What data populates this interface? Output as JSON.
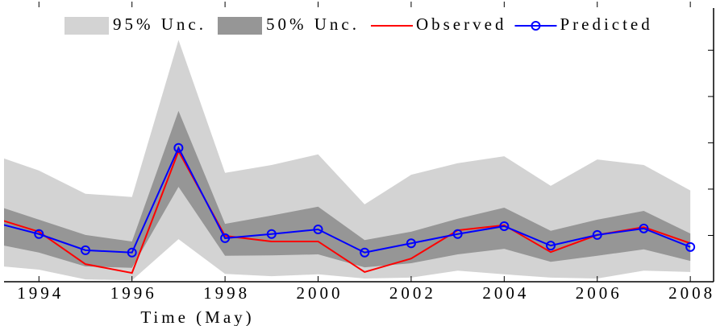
{
  "chart_data": {
    "type": "line",
    "x": [
      1993,
      1994,
      1995,
      1996,
      1997,
      1998,
      1999,
      2000,
      2001,
      2002,
      2003,
      2004,
      2005,
      2006,
      2007,
      2008
    ],
    "xlabel": "Time (May)",
    "xlim": [
      1993.25,
      2008.5
    ],
    "xticks": [
      1994,
      1996,
      1998,
      2000,
      2002,
      2004,
      2006,
      2008
    ],
    "ylim": [
      0,
      5.91
    ],
    "yticks": [
      1,
      2,
      3,
      4,
      5
    ],
    "bands": [
      {
        "name": "95% Unc.",
        "color": "#d3d3d3",
        "upper": [
          2.75,
          2.4,
          1.9,
          1.83,
          5.22,
          2.35,
          2.52,
          2.75,
          1.67,
          2.31,
          2.56,
          2.71,
          2.07,
          2.64,
          2.52,
          1.97
        ],
        "lower": [
          0.35,
          0.26,
          0.05,
          0.03,
          0.92,
          0.17,
          0.12,
          0.16,
          0.07,
          0.09,
          0.24,
          0.16,
          0.09,
          0.07,
          0.24,
          0.21
        ]
      },
      {
        "name": "50% Unc.",
        "color": "#969696",
        "upper": [
          1.67,
          1.34,
          1.01,
          0.87,
          3.69,
          1.25,
          1.43,
          1.62,
          0.9,
          1.08,
          1.36,
          1.6,
          1.1,
          1.34,
          1.53,
          1.04
        ],
        "lower": [
          0.83,
          0.63,
          0.33,
          0.3,
          2.05,
          0.56,
          0.57,
          0.59,
          0.31,
          0.4,
          0.59,
          0.71,
          0.43,
          0.56,
          0.7,
          0.45
        ]
      }
    ],
    "series": [
      {
        "name": "Observed",
        "color": "#ff0000",
        "marker": false,
        "values": [
          1.39,
          1.08,
          0.38,
          0.19,
          2.82,
          0.99,
          0.87,
          0.87,
          0.21,
          0.5,
          1.11,
          1.22,
          0.64,
          1.01,
          1.18,
          0.83
        ]
      },
      {
        "name": "Predicted",
        "color": "#0000ff",
        "marker": true,
        "values": [
          1.29,
          1.03,
          0.68,
          0.63,
          2.89,
          0.94,
          1.03,
          1.13,
          0.63,
          0.83,
          1.03,
          1.2,
          0.78,
          1.01,
          1.15,
          0.75
        ]
      }
    ]
  }
}
